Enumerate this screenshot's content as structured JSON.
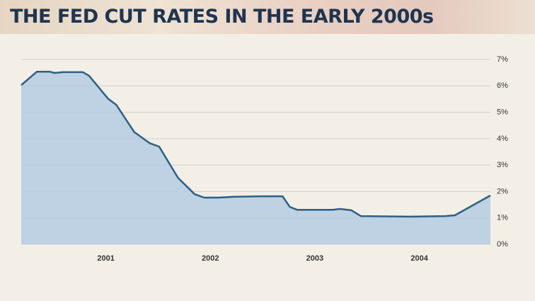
{
  "chart_data": {
    "type": "area",
    "title": "THE FED CUT RATES IN THE EARLY 2000s",
    "x": [
      2000.19,
      2000.34,
      2000.46,
      2000.51,
      2000.59,
      2000.78,
      2000.84,
      2001.02,
      2001.1,
      2001.27,
      2001.42,
      2001.51,
      2001.69,
      2001.85,
      2001.94,
      2002.08,
      2002.22,
      2002.49,
      2002.69,
      2002.76,
      2002.83,
      2003.17,
      2003.24,
      2003.35,
      2003.44,
      2003.92,
      2004.25,
      2004.34,
      2004.68
    ],
    "values": [
      6.03,
      6.54,
      6.54,
      6.49,
      6.52,
      6.52,
      6.38,
      5.52,
      5.28,
      4.26,
      3.83,
      3.7,
      2.52,
      1.9,
      1.77,
      1.77,
      1.8,
      1.82,
      1.82,
      1.42,
      1.31,
      1.31,
      1.34,
      1.29,
      1.07,
      1.05,
      1.07,
      1.1,
      1.85
    ],
    "color": "#2e5f86",
    "fill": "#b4cce2",
    "xlim": [
      2000.19,
      2004.68
    ],
    "xticks": [
      2001,
      2002,
      2003,
      2004
    ],
    "ylim": [
      0,
      7
    ],
    "yticks": [
      {
        "value": 0,
        "label": "0%"
      },
      {
        "value": 1,
        "label": "1%"
      },
      {
        "value": 2,
        "label": "2%"
      },
      {
        "value": 3,
        "label": "3%"
      },
      {
        "value": 4,
        "label": "4%"
      },
      {
        "value": 5,
        "label": "5%"
      },
      {
        "value": 6,
        "label": "6%"
      },
      {
        "value": 7,
        "label": "7%"
      }
    ],
    "grid": true
  }
}
